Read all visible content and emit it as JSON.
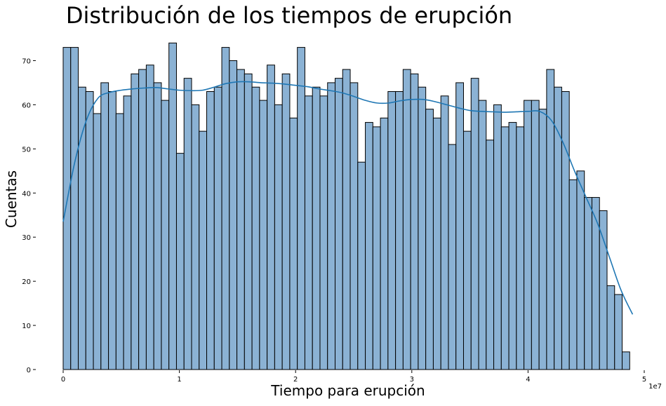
{
  "chart_data": {
    "type": "bar",
    "title": "Distribución de los tiempos de erupción",
    "xlabel": "Tiempo para erupción",
    "ylabel": "Cuentas",
    "x_offset_label": "1e7",
    "x_scale": 10000000,
    "xlim": [
      0,
      50000000
    ],
    "ylim": [
      0,
      75
    ],
    "grid": false,
    "legend": "none",
    "bar_color": "#8bb2d4",
    "bar_edge_color": "#000000",
    "kde_color": "#1f77b4",
    "x_ticks": [
      0,
      1,
      2,
      3,
      4,
      5
    ],
    "x_tick_labels": [
      "0",
      "1",
      "2",
      "3",
      "4",
      "5"
    ],
    "y_ticks": [
      0,
      10,
      20,
      30,
      40,
      50,
      60,
      70
    ],
    "y_tick_labels": [
      "0",
      "10",
      "20",
      "30",
      "40",
      "50",
      "60",
      "70"
    ],
    "bin_start": 0,
    "bin_width": 650000,
    "counts": [
      73,
      73,
      64,
      63,
      58,
      65,
      63,
      58,
      62,
      67,
      68,
      69,
      65,
      61,
      74,
      49,
      66,
      60,
      54,
      63,
      64,
      73,
      70,
      68,
      67,
      64,
      61,
      69,
      60,
      67,
      57,
      73,
      62,
      64,
      62,
      65,
      66,
      68,
      65,
      47,
      56,
      55,
      57,
      63,
      63,
      68,
      67,
      64,
      59,
      57,
      62,
      51,
      65,
      54,
      66,
      61,
      52,
      60,
      55,
      56,
      55,
      61,
      61,
      59,
      68,
      64,
      63,
      43,
      45,
      39,
      39,
      36,
      19,
      17,
      4
    ],
    "kde": {
      "x": [
        0,
        1000000,
        2000000,
        3000000,
        4000000,
        5000000,
        6000000,
        7000000,
        8000000,
        9000000,
        10000000,
        11000000,
        12000000,
        13000000,
        14000000,
        15000000,
        16000000,
        17000000,
        18000000,
        19000000,
        20000000,
        21000000,
        22000000,
        23000000,
        24000000,
        25000000,
        26000000,
        27000000,
        28000000,
        29000000,
        30000000,
        31000000,
        32000000,
        33000000,
        34000000,
        35000000,
        36000000,
        37000000,
        38000000,
        39000000,
        40000000,
        41000000,
        42000000,
        43000000,
        44000000,
        45000000,
        46000000,
        47000000,
        48000000,
        49000000
      ],
      "y": [
        33.5,
        47,
        56.5,
        61.5,
        62.8,
        63.3,
        63.6,
        63.8,
        63.9,
        63.6,
        63.3,
        63.2,
        63.3,
        64,
        64.8,
        65.2,
        65.2,
        65,
        64.9,
        64.7,
        64.4,
        64.1,
        63.6,
        63.2,
        62.7,
        61.9,
        61,
        60.4,
        60.4,
        60.9,
        61.2,
        61.2,
        60.7,
        60,
        59.3,
        58.7,
        58.5,
        58.4,
        58.3,
        58.4,
        58.5,
        58.5,
        56.5,
        51.5,
        45,
        39,
        33,
        25.5,
        18,
        12.5
      ]
    }
  }
}
